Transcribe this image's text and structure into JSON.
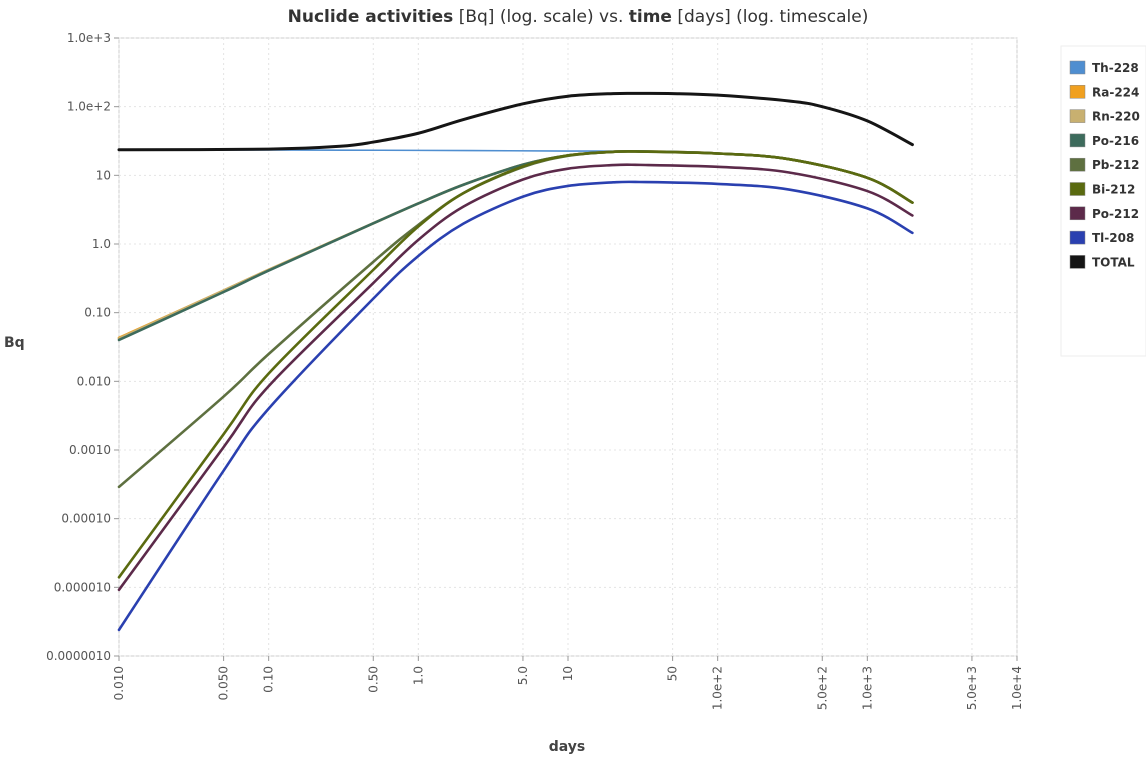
{
  "chart_data": {
    "type": "line",
    "title_parts": [
      {
        "text": "Nuclide activities",
        "bold": true
      },
      {
        "text": " [Bq] (log. scale) vs. ",
        "bold": false
      },
      {
        "text": "time",
        "bold": true
      },
      {
        "text": " [days] (log. timescale)",
        "bold": false
      }
    ],
    "xlabel": "days",
    "ylabel": "Bq",
    "x_scale": "log",
    "y_scale": "log",
    "xlim": [
      0.01,
      10000
    ],
    "ylim": [
      1e-06,
      1000
    ],
    "grid": true,
    "legend_position": "right",
    "x_ticks": [
      {
        "value": 0.01,
        "label": "0.010"
      },
      {
        "value": 0.05,
        "label": "0.050"
      },
      {
        "value": 0.1,
        "label": "0.10"
      },
      {
        "value": 0.5,
        "label": "0.50"
      },
      {
        "value": 1,
        "label": "1.0"
      },
      {
        "value": 5,
        "label": "5.0"
      },
      {
        "value": 10,
        "label": "10"
      },
      {
        "value": 50,
        "label": "50"
      },
      {
        "value": 100,
        "label": "1.0e+2"
      },
      {
        "value": 500,
        "label": "5.0e+2"
      },
      {
        "value": 1000,
        "label": "1.0e+3"
      },
      {
        "value": 5000,
        "label": "5.0e+3"
      },
      {
        "value": 10000,
        "label": "1.0e+4"
      }
    ],
    "y_ticks": [
      {
        "value": 1000,
        "label": "1.0e+3"
      },
      {
        "value": 100,
        "label": "1.0e+2"
      },
      {
        "value": 10,
        "label": "10"
      },
      {
        "value": 1,
        "label": "1.0"
      },
      {
        "value": 0.1,
        "label": "0.10"
      },
      {
        "value": 0.01,
        "label": "0.010"
      },
      {
        "value": 0.001,
        "label": "0.0010"
      },
      {
        "value": 0.0001,
        "label": "0.00010"
      },
      {
        "value": 1e-05,
        "label": "0.000010"
      },
      {
        "value": 1e-06,
        "label": "0.0000010"
      }
    ],
    "series": [
      {
        "name": "Th-228",
        "color": "#4f8ed0",
        "x": [
          0.01,
          0.1,
          1,
          10,
          30,
          100,
          300,
          1000,
          2000
        ],
        "y": [
          23.5,
          23.4,
          23.1,
          22.6,
          22.3,
          20.8,
          17.2,
          9.2,
          4.0
        ]
      },
      {
        "name": "Ra-224",
        "color": "#f0a020",
        "x": [
          0.01,
          0.05,
          0.1,
          0.5,
          1,
          2,
          5,
          10,
          20,
          30,
          100,
          300,
          1000,
          2000
        ],
        "y": [
          0.043,
          0.21,
          0.42,
          2.0,
          3.9,
          7.3,
          14.3,
          19.5,
          22.0,
          22.3,
          20.8,
          17.2,
          9.2,
          4.0
        ]
      },
      {
        "name": "Rn-220",
        "color": "#c8b070",
        "x": [
          0.01,
          0.05,
          0.1,
          0.5,
          1,
          2,
          5,
          10,
          20,
          30,
          100,
          300,
          1000,
          2000
        ],
        "y": [
          0.042,
          0.21,
          0.42,
          2.0,
          3.9,
          7.3,
          14.3,
          19.5,
          22.0,
          22.3,
          20.8,
          17.2,
          9.2,
          4.0
        ]
      },
      {
        "name": "Po-216",
        "color": "#3d6b5c",
        "x": [
          0.01,
          0.05,
          0.1,
          0.5,
          1,
          2,
          5,
          10,
          20,
          30,
          100,
          300,
          1000,
          2000
        ],
        "y": [
          0.04,
          0.2,
          0.41,
          2.0,
          3.9,
          7.3,
          14.3,
          19.5,
          22.0,
          22.3,
          20.8,
          17.2,
          9.2,
          4.0
        ]
      },
      {
        "name": "Pb-212",
        "color": "#5e7040",
        "x": [
          0.01,
          0.05,
          0.1,
          0.5,
          1,
          2,
          5,
          10,
          20,
          30,
          100,
          300,
          1000,
          2000
        ],
        "y": [
          0.00029,
          0.006,
          0.025,
          0.55,
          1.9,
          5.5,
          13.2,
          19.2,
          22.0,
          22.2,
          20.8,
          17.2,
          9.2,
          4.0
        ]
      },
      {
        "name": "Bi-212",
        "color": "#5a6a10",
        "x": [
          0.01,
          0.05,
          0.1,
          0.5,
          1,
          2,
          5,
          10,
          20,
          30,
          100,
          300,
          1000,
          2000
        ],
        "y": [
          1.4e-05,
          0.0017,
          0.013,
          0.42,
          1.8,
          5.5,
          13.5,
          19.5,
          22.0,
          22.2,
          20.8,
          17.2,
          9.2,
          4.0
        ]
      },
      {
        "name": "Po-212",
        "color": "#5c2a4a",
        "x": [
          0.01,
          0.05,
          0.1,
          0.5,
          1,
          2,
          5,
          10,
          20,
          30,
          100,
          300,
          1000,
          2000
        ],
        "y": [
          9.2e-06,
          0.0011,
          0.0085,
          0.27,
          1.15,
          3.5,
          8.7,
          12.5,
          14.1,
          14.2,
          13.3,
          11.0,
          5.9,
          2.6
        ]
      },
      {
        "name": "Tl-208",
        "color": "#2a40b0",
        "x": [
          0.01,
          0.05,
          0.1,
          0.5,
          1,
          2,
          5,
          10,
          20,
          30,
          100,
          300,
          1000,
          2000
        ],
        "y": [
          2.4e-06,
          0.0005,
          0.004,
          0.16,
          0.67,
          1.98,
          4.9,
          7.0,
          7.9,
          8.0,
          7.5,
          6.2,
          3.3,
          1.45
        ]
      },
      {
        "name": "TOTAL",
        "color": "#151515",
        "x": [
          0.01,
          0.1,
          0.3,
          0.5,
          1,
          2,
          5,
          10,
          20,
          30,
          50,
          100,
          300,
          500,
          1000,
          2000
        ],
        "y": [
          23.6,
          24.1,
          26.5,
          30.5,
          41,
          65,
          110,
          142,
          155,
          156,
          155,
          147,
          121,
          100,
          62,
          28
        ]
      }
    ]
  }
}
